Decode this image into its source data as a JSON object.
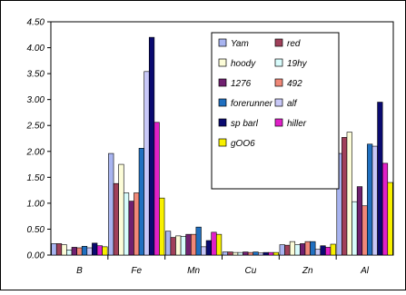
{
  "chart_data": {
    "type": "bar",
    "categories": [
      "B",
      "Fe",
      "Mn",
      "Cu",
      "Zn",
      "Al"
    ],
    "ylim": [
      0,
      4.5
    ],
    "y_ticks": [
      "0.00",
      "0.50",
      "1.00",
      "1.50",
      "2.00",
      "2.50",
      "3.00",
      "3.50",
      "4.00",
      "4.50"
    ],
    "grid": false,
    "legend_placement": "top-center (inside plot)",
    "series": [
      {
        "name": "Yam",
        "color": "#a8b4f0",
        "values": [
          0.22,
          1.96,
          0.46,
          0.06,
          0.2,
          1.96
        ]
      },
      {
        "name": "red",
        "color": "#a0405a",
        "values": [
          0.22,
          1.38,
          0.34,
          0.06,
          0.19,
          2.27
        ]
      },
      {
        "name": "hoody",
        "color": "#fcfcd8",
        "values": [
          0.2,
          1.75,
          0.37,
          0.05,
          0.26,
          2.37
        ]
      },
      {
        "name": "19hy",
        "color": "#d8fcfc",
        "values": [
          0.1,
          1.2,
          0.36,
          0.05,
          0.2,
          1.03
        ]
      },
      {
        "name": "1276",
        "color": "#702070",
        "values": [
          0.15,
          1.04,
          0.4,
          0.06,
          0.22,
          1.32
        ]
      },
      {
        "name": "492",
        "color": "#f08878",
        "values": [
          0.14,
          1.2,
          0.4,
          0.05,
          0.26,
          0.95
        ]
      },
      {
        "name": "forerunner",
        "color": "#2070c0",
        "values": [
          0.17,
          2.06,
          0.54,
          0.06,
          0.26,
          2.14
        ]
      },
      {
        "name": "alf",
        "color": "#c8c8f8",
        "values": [
          0.14,
          3.54,
          0.16,
          0.04,
          0.11,
          2.1
        ]
      },
      {
        "name": "sp barl",
        "color": "#0a0a70",
        "values": [
          0.23,
          4.2,
          0.28,
          0.05,
          0.18,
          2.95
        ]
      },
      {
        "name": "hiller",
        "color": "#e020c8",
        "values": [
          0.18,
          2.56,
          0.44,
          0.05,
          0.15,
          1.77
        ]
      },
      {
        "name": "gOO6",
        "color": "#f8f000",
        "values": [
          0.16,
          1.1,
          0.4,
          0.05,
          0.21,
          1.4
        ]
      }
    ]
  }
}
